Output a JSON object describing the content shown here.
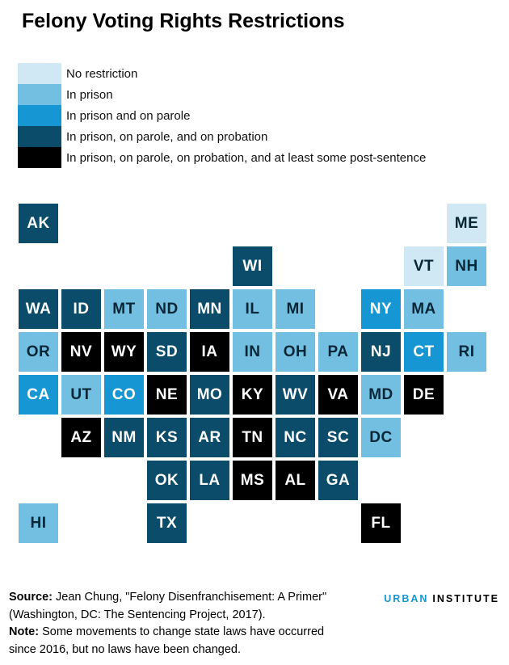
{
  "title": "Felony Voting Rights Restrictions",
  "colors": {
    "no_restriction": "#cfe8f3",
    "in_prison": "#73bfe2",
    "in_prison_parole": "#1696d2",
    "in_prison_parole_probation": "#0a4c6a",
    "post_sentence": "#000000",
    "dark_label": "#062635",
    "light_label": "#ffffff",
    "brand_accent": "#1696d2"
  },
  "legend": [
    {
      "key": "no_restriction",
      "label": "No restriction"
    },
    {
      "key": "in_prison",
      "label": "In prison"
    },
    {
      "key": "in_prison_parole",
      "label": "In prison and on parole"
    },
    {
      "key": "in_prison_parole_probation",
      "label": "In prison, on parole, and on probation"
    },
    {
      "key": "post_sentence",
      "label": "In prison, on parole, on probation, and at least some post-sentence"
    }
  ],
  "chart_data": {
    "type": "heatmap",
    "subtype": "state-tile-grid-map",
    "title": "Felony Voting Rights Restrictions",
    "legend_position": "top-left",
    "categories": [
      "No restriction",
      "In prison",
      "In prison and on parole",
      "In prison, on parole, and on probation",
      "In prison, on parole, on probation, and at least some post-sentence"
    ],
    "states": [
      {
        "abbr": "AK",
        "row": 0,
        "col": 0,
        "category": "in_prison_parole_probation"
      },
      {
        "abbr": "ME",
        "row": 0,
        "col": 10,
        "category": "no_restriction"
      },
      {
        "abbr": "WI",
        "row": 1,
        "col": 5,
        "category": "in_prison_parole_probation"
      },
      {
        "abbr": "VT",
        "row": 1,
        "col": 9,
        "category": "no_restriction"
      },
      {
        "abbr": "NH",
        "row": 1,
        "col": 10,
        "category": "in_prison"
      },
      {
        "abbr": "WA",
        "row": 2,
        "col": 0,
        "category": "in_prison_parole_probation"
      },
      {
        "abbr": "ID",
        "row": 2,
        "col": 1,
        "category": "in_prison_parole_probation"
      },
      {
        "abbr": "MT",
        "row": 2,
        "col": 2,
        "category": "in_prison"
      },
      {
        "abbr": "ND",
        "row": 2,
        "col": 3,
        "category": "in_prison"
      },
      {
        "abbr": "MN",
        "row": 2,
        "col": 4,
        "category": "in_prison_parole_probation"
      },
      {
        "abbr": "IL",
        "row": 2,
        "col": 5,
        "category": "in_prison"
      },
      {
        "abbr": "MI",
        "row": 2,
        "col": 6,
        "category": "in_prison"
      },
      {
        "abbr": "NY",
        "row": 2,
        "col": 8,
        "category": "in_prison_parole"
      },
      {
        "abbr": "MA",
        "row": 2,
        "col": 9,
        "category": "in_prison"
      },
      {
        "abbr": "OR",
        "row": 3,
        "col": 0,
        "category": "in_prison"
      },
      {
        "abbr": "NV",
        "row": 3,
        "col": 1,
        "category": "post_sentence"
      },
      {
        "abbr": "WY",
        "row": 3,
        "col": 2,
        "category": "post_sentence"
      },
      {
        "abbr": "SD",
        "row": 3,
        "col": 3,
        "category": "in_prison_parole_probation"
      },
      {
        "abbr": "IA",
        "row": 3,
        "col": 4,
        "category": "post_sentence"
      },
      {
        "abbr": "IN",
        "row": 3,
        "col": 5,
        "category": "in_prison"
      },
      {
        "abbr": "OH",
        "row": 3,
        "col": 6,
        "category": "in_prison"
      },
      {
        "abbr": "PA",
        "row": 3,
        "col": 7,
        "category": "in_prison"
      },
      {
        "abbr": "NJ",
        "row": 3,
        "col": 8,
        "category": "in_prison_parole_probation"
      },
      {
        "abbr": "CT",
        "row": 3,
        "col": 9,
        "category": "in_prison_parole"
      },
      {
        "abbr": "RI",
        "row": 3,
        "col": 10,
        "category": "in_prison"
      },
      {
        "abbr": "CA",
        "row": 4,
        "col": 0,
        "category": "in_prison_parole"
      },
      {
        "abbr": "UT",
        "row": 4,
        "col": 1,
        "category": "in_prison"
      },
      {
        "abbr": "CO",
        "row": 4,
        "col": 2,
        "category": "in_prison_parole"
      },
      {
        "abbr": "NE",
        "row": 4,
        "col": 3,
        "category": "post_sentence"
      },
      {
        "abbr": "MO",
        "row": 4,
        "col": 4,
        "category": "in_prison_parole_probation"
      },
      {
        "abbr": "KY",
        "row": 4,
        "col": 5,
        "category": "post_sentence"
      },
      {
        "abbr": "WV",
        "row": 4,
        "col": 6,
        "category": "in_prison_parole_probation"
      },
      {
        "abbr": "VA",
        "row": 4,
        "col": 7,
        "category": "post_sentence"
      },
      {
        "abbr": "MD",
        "row": 4,
        "col": 8,
        "category": "in_prison"
      },
      {
        "abbr": "DE",
        "row": 4,
        "col": 9,
        "category": "post_sentence"
      },
      {
        "abbr": "AZ",
        "row": 5,
        "col": 1,
        "category": "post_sentence"
      },
      {
        "abbr": "NM",
        "row": 5,
        "col": 2,
        "category": "in_prison_parole_probation"
      },
      {
        "abbr": "KS",
        "row": 5,
        "col": 3,
        "category": "in_prison_parole_probation"
      },
      {
        "abbr": "AR",
        "row": 5,
        "col": 4,
        "category": "in_prison_parole_probation"
      },
      {
        "abbr": "TN",
        "row": 5,
        "col": 5,
        "category": "post_sentence"
      },
      {
        "abbr": "NC",
        "row": 5,
        "col": 6,
        "category": "in_prison_parole_probation"
      },
      {
        "abbr": "SC",
        "row": 5,
        "col": 7,
        "category": "in_prison_parole_probation"
      },
      {
        "abbr": "DC",
        "row": 5,
        "col": 8,
        "category": "in_prison"
      },
      {
        "abbr": "OK",
        "row": 6,
        "col": 3,
        "category": "in_prison_parole_probation"
      },
      {
        "abbr": "LA",
        "row": 6,
        "col": 4,
        "category": "in_prison_parole_probation"
      },
      {
        "abbr": "MS",
        "row": 6,
        "col": 5,
        "category": "post_sentence"
      },
      {
        "abbr": "AL",
        "row": 6,
        "col": 6,
        "category": "post_sentence"
      },
      {
        "abbr": "GA",
        "row": 6,
        "col": 7,
        "category": "in_prison_parole_probation"
      },
      {
        "abbr": "HI",
        "row": 7,
        "col": 0,
        "category": "in_prison"
      },
      {
        "abbr": "TX",
        "row": 7,
        "col": 3,
        "category": "in_prison_parole_probation"
      },
      {
        "abbr": "FL",
        "row": 7,
        "col": 8,
        "category": "post_sentence"
      }
    ]
  },
  "footer": {
    "source_label": "Source:",
    "source_line1": " Jean Chung, \"Felony Disenfranchisement: A Primer\"",
    "source_line2": "(Washington, DC: The Sentencing Project, 2017).",
    "note_label": "Note:",
    "note_line1": " Some movements to change state laws have occurred",
    "note_line2": "since 2016, but no laws have been changed."
  },
  "logo": {
    "urban": "URBAN",
    "institute": "INSTITUTE"
  }
}
